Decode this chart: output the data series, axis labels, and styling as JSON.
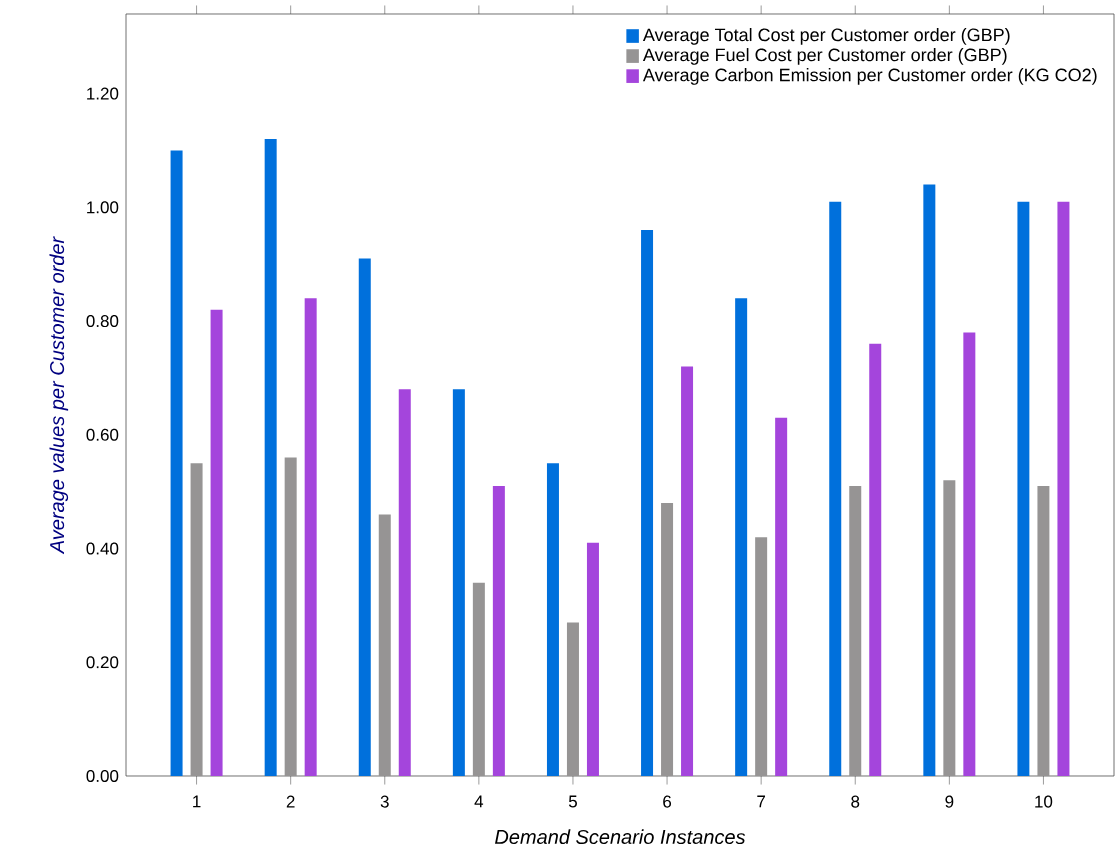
{
  "chart_data": {
    "type": "bar",
    "xlabel": "Demand Scenario Instances",
    "ylabel": "Average values per Customer order",
    "categories": [
      "1",
      "2",
      "3",
      "4",
      "5",
      "6",
      "7",
      "8",
      "9",
      "10"
    ],
    "series": [
      {
        "name": "Average Total Cost per Customer order (GBP)",
        "color": "#0070dc",
        "values": [
          1.1,
          1.12,
          0.91,
          0.68,
          0.55,
          0.96,
          0.84,
          1.01,
          1.04,
          1.01
        ]
      },
      {
        "name": "Average Fuel Cost per Customer order (GBP)",
        "color": "#969494",
        "values": [
          0.55,
          0.56,
          0.46,
          0.34,
          0.27,
          0.48,
          0.42,
          0.51,
          0.52,
          0.51
        ]
      },
      {
        "name": "Average Carbon Emission per Customer order (KG CO2)",
        "color": "#a445dc",
        "values": [
          0.82,
          0.84,
          0.68,
          0.51,
          0.41,
          0.72,
          0.63,
          0.76,
          0.78,
          1.01
        ]
      }
    ],
    "ylim": [
      0,
      1.34
    ],
    "yticks": [
      {
        "value": 0,
        "label": "0.00"
      },
      {
        "value": 0.2,
        "label": "0.20"
      },
      {
        "value": 0.4,
        "label": "0.40"
      },
      {
        "value": 0.6,
        "label": "0.60"
      },
      {
        "value": 0.8,
        "label": "0.80"
      },
      {
        "value": 1.0,
        "label": "1.00"
      },
      {
        "value": 1.2,
        "label": "1.20"
      }
    ],
    "grid": false,
    "legend": "top right"
  }
}
